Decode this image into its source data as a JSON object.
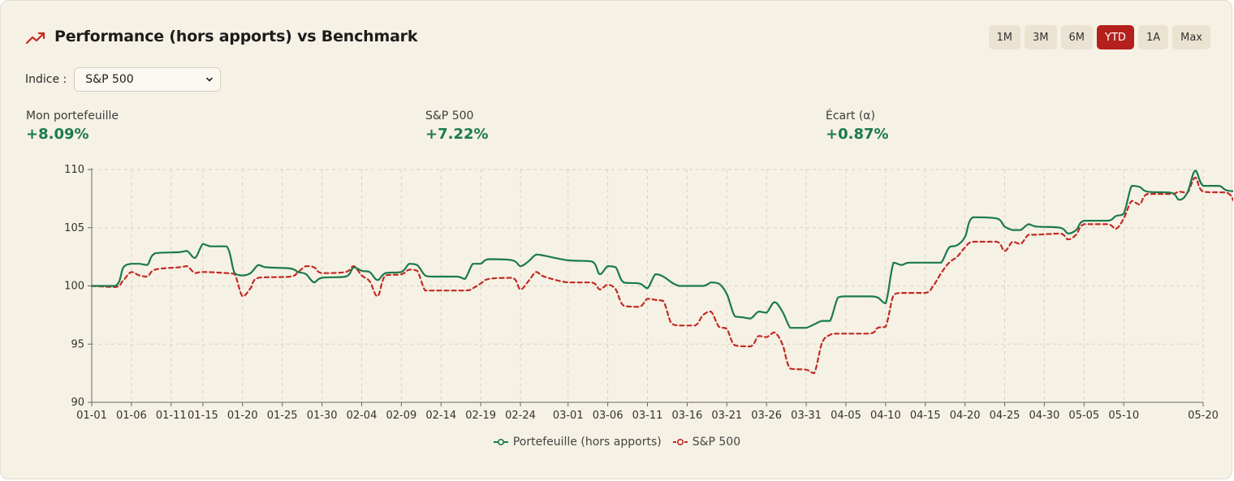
{
  "header": {
    "title": "Performance (hors apports) vs Benchmark",
    "ranges": [
      {
        "label": "1M",
        "active": false
      },
      {
        "label": "3M",
        "active": false
      },
      {
        "label": "6M",
        "active": false
      },
      {
        "label": "YTD",
        "active": true
      },
      {
        "label": "1A",
        "active": false
      },
      {
        "label": "Max",
        "active": false
      }
    ]
  },
  "index_selector": {
    "label": "Indice :",
    "selected": "S&P 500"
  },
  "stats": [
    {
      "label": "Mon portefeuille",
      "value": "+8.09%"
    },
    {
      "label": "S&P 500",
      "value": "+7.22%"
    },
    {
      "label": "Écart (α)",
      "value": "+0.87%"
    }
  ],
  "colors": {
    "portfolio": "#1a7a4c",
    "benchmark": "#c22a24",
    "active_range": "#b4211d",
    "background": "#f6f1e5"
  },
  "chart_data": {
    "type": "line",
    "ylim": [
      90,
      110
    ],
    "yticks": [
      90,
      95,
      100,
      105,
      110
    ],
    "xticks": [
      "01-01",
      "01-06",
      "01-11",
      "01-15",
      "01-20",
      "01-25",
      "01-30",
      "02-04",
      "02-09",
      "02-14",
      "02-19",
      "02-24",
      "03-01",
      "03-06",
      "03-11",
      "03-16",
      "03-21",
      "03-26",
      "03-31",
      "04-05",
      "04-10",
      "04-15",
      "04-20",
      "04-25",
      "04-30",
      "05-05",
      "05-10",
      "05-20"
    ],
    "grid": true,
    "legend": "bottom-center",
    "series": [
      {
        "name": "Portefeuille (hors apports)",
        "style": "solid",
        "points": [
          [
            "01-01",
            100
          ],
          [
            "01-04",
            100
          ],
          [
            "01-05",
            101.6
          ],
          [
            "01-06",
            101.9
          ],
          [
            "01-07",
            101.9
          ],
          [
            "01-08",
            101.8
          ],
          [
            "01-09",
            102.8
          ],
          [
            "01-12",
            102.9
          ],
          [
            "01-13",
            103.0
          ],
          [
            "01-14",
            102.4
          ],
          [
            "01-15",
            103.6
          ],
          [
            "01-16",
            103.4
          ],
          [
            "01-18",
            103.4
          ],
          [
            "01-19",
            101.1
          ],
          [
            "01-20",
            100.9
          ],
          [
            "01-21",
            101.1
          ],
          [
            "01-22",
            101.8
          ],
          [
            "01-23",
            101.6
          ],
          [
            "01-26",
            101.5
          ],
          [
            "01-27",
            101.2
          ],
          [
            "01-28",
            101.0
          ],
          [
            "01-29",
            100.3
          ],
          [
            "01-30",
            100.7
          ],
          [
            "02-02",
            100.8
          ],
          [
            "02-03",
            101.6
          ],
          [
            "02-04",
            101.3
          ],
          [
            "02-05",
            101.2
          ],
          [
            "02-06",
            100.5
          ],
          [
            "02-07",
            101.1
          ],
          [
            "02-09",
            101.2
          ],
          [
            "02-10",
            101.9
          ],
          [
            "02-11",
            101.8
          ],
          [
            "02-12",
            100.9
          ],
          [
            "02-13",
            100.8
          ],
          [
            "02-16",
            100.8
          ],
          [
            "02-17",
            100.6
          ],
          [
            "02-18",
            101.9
          ],
          [
            "02-19",
            101.9
          ],
          [
            "02-20",
            102.3
          ],
          [
            "02-23",
            102.2
          ],
          [
            "02-24",
            101.7
          ],
          [
            "02-25",
            102.1
          ],
          [
            "02-26",
            102.7
          ],
          [
            "02-27",
            102.6
          ],
          [
            "03-01",
            102.2
          ],
          [
            "03-04",
            102.1
          ],
          [
            "03-05",
            101.0
          ],
          [
            "03-06",
            101.7
          ],
          [
            "03-07",
            101.6
          ],
          [
            "03-08",
            100.3
          ],
          [
            "03-10",
            100.2
          ],
          [
            "03-11",
            99.8
          ],
          [
            "03-12",
            101.0
          ],
          [
            "03-13",
            100.8
          ],
          [
            "03-15",
            100.0
          ],
          [
            "03-18",
            100.0
          ],
          [
            "03-19",
            100.3
          ],
          [
            "03-20",
            100.2
          ],
          [
            "03-21",
            99.3
          ],
          [
            "03-22",
            97.4
          ],
          [
            "03-23",
            97.3
          ],
          [
            "03-24",
            97.2
          ],
          [
            "03-25",
            97.8
          ],
          [
            "03-26",
            97.7
          ],
          [
            "03-27",
            98.6
          ],
          [
            "03-28",
            97.8
          ],
          [
            "03-29",
            96.4
          ],
          [
            "03-30",
            96.4
          ],
          [
            "03-31",
            96.4
          ],
          [
            "04-01",
            96.7
          ],
          [
            "04-02",
            97.0
          ],
          [
            "04-03",
            97.0
          ],
          [
            "04-04",
            99.0
          ],
          [
            "04-05",
            99.1
          ],
          [
            "04-08",
            99.1
          ],
          [
            "04-09",
            99.0
          ],
          [
            "04-10",
            98.5
          ],
          [
            "04-11",
            102.0
          ],
          [
            "04-12",
            101.8
          ],
          [
            "04-13",
            102.0
          ],
          [
            "04-16",
            102.0
          ],
          [
            "04-17",
            102.0
          ],
          [
            "04-18",
            103.3
          ],
          [
            "04-19",
            103.5
          ],
          [
            "04-20",
            104.2
          ],
          [
            "04-21",
            105.9
          ],
          [
            "04-24",
            105.8
          ],
          [
            "04-25",
            105.1
          ],
          [
            "04-26",
            104.8
          ],
          [
            "04-27",
            104.8
          ],
          [
            "04-28",
            105.3
          ],
          [
            "04-29",
            105.1
          ],
          [
            "05-02",
            105.0
          ],
          [
            "05-03",
            104.5
          ],
          [
            "05-04",
            104.8
          ],
          [
            "05-05",
            105.6
          ],
          [
            "05-08",
            105.6
          ],
          [
            "05-09",
            106.0
          ],
          [
            "05-10",
            106.2
          ],
          [
            "05-11",
            108.6
          ],
          [
            "05-12",
            108.5
          ],
          [
            "05-13",
            108.1
          ],
          [
            "05-16",
            108.0
          ],
          [
            "05-17",
            107.4
          ],
          [
            "05-18",
            108.0
          ],
          [
            "05-19",
            109.9
          ],
          [
            "05-20",
            108.6
          ],
          [
            "05-22",
            108.6
          ],
          [
            "05-23",
            108.2
          ],
          [
            "05-25",
            108.1
          ]
        ]
      },
      {
        "name": "S&P 500",
        "style": "dashed",
        "points": [
          [
            "01-01",
            100
          ],
          [
            "01-04",
            99.9
          ],
          [
            "01-05",
            100.5
          ],
          [
            "01-06",
            101.2
          ],
          [
            "01-07",
            100.9
          ],
          [
            "01-08",
            100.8
          ],
          [
            "01-09",
            101.4
          ],
          [
            "01-12",
            101.6
          ],
          [
            "01-13",
            101.7
          ],
          [
            "01-14",
            101.1
          ],
          [
            "01-15",
            101.2
          ],
          [
            "01-18",
            101.1
          ],
          [
            "01-19",
            101.0
          ],
          [
            "01-20",
            99.1
          ],
          [
            "01-21",
            99.8
          ],
          [
            "01-22",
            100.7
          ],
          [
            "01-26",
            100.8
          ],
          [
            "01-27",
            101.2
          ],
          [
            "01-28",
            101.7
          ],
          [
            "01-29",
            101.6
          ],
          [
            "01-30",
            101.1
          ],
          [
            "02-02",
            101.2
          ],
          [
            "02-03",
            101.7
          ],
          [
            "02-04",
            100.9
          ],
          [
            "02-05",
            100.4
          ],
          [
            "02-06",
            99.1
          ],
          [
            "02-07",
            100.9
          ],
          [
            "02-09",
            101.0
          ],
          [
            "02-10",
            101.4
          ],
          [
            "02-11",
            101.3
          ],
          [
            "02-12",
            99.6
          ],
          [
            "02-13",
            99.6
          ],
          [
            "02-17",
            99.6
          ],
          [
            "02-18",
            99.8
          ],
          [
            "02-19",
            100.2
          ],
          [
            "02-20",
            100.6
          ],
          [
            "02-23",
            100.7
          ],
          [
            "02-24",
            99.7
          ],
          [
            "02-25",
            100.4
          ],
          [
            "02-26",
            101.2
          ],
          [
            "02-27",
            100.8
          ],
          [
            "03-01",
            100.3
          ],
          [
            "03-04",
            100.3
          ],
          [
            "03-05",
            99.7
          ],
          [
            "03-06",
            100.1
          ],
          [
            "03-07",
            99.7
          ],
          [
            "03-08",
            98.3
          ],
          [
            "03-10",
            98.2
          ],
          [
            "03-11",
            98.9
          ],
          [
            "03-12",
            98.8
          ],
          [
            "03-13",
            98.7
          ],
          [
            "03-14",
            96.8
          ],
          [
            "03-15",
            96.6
          ],
          [
            "03-17",
            96.6
          ],
          [
            "03-18",
            97.5
          ],
          [
            "03-19",
            97.8
          ],
          [
            "03-20",
            96.5
          ],
          [
            "03-21",
            96.3
          ],
          [
            "03-22",
            94.9
          ],
          [
            "03-24",
            94.8
          ],
          [
            "03-25",
            95.7
          ],
          [
            "03-26",
            95.6
          ],
          [
            "03-27",
            96.0
          ],
          [
            "03-28",
            95.0
          ],
          [
            "03-29",
            92.9
          ],
          [
            "03-31",
            92.8
          ],
          [
            "04-01",
            92.5
          ],
          [
            "04-02",
            95.1
          ],
          [
            "04-03",
            95.8
          ],
          [
            "04-04",
            95.9
          ],
          [
            "04-08",
            95.9
          ],
          [
            "04-09",
            96.4
          ],
          [
            "04-10",
            96.5
          ],
          [
            "04-11",
            99.2
          ],
          [
            "04-12",
            99.4
          ],
          [
            "04-15",
            99.4
          ],
          [
            "04-16",
            100.0
          ],
          [
            "04-17",
            101.1
          ],
          [
            "04-18",
            102.0
          ],
          [
            "04-19",
            102.5
          ],
          [
            "04-20",
            103.3
          ],
          [
            "04-21",
            103.8
          ],
          [
            "04-24",
            103.8
          ],
          [
            "04-25",
            103.0
          ],
          [
            "04-26",
            103.8
          ],
          [
            "04-27",
            103.6
          ],
          [
            "04-28",
            104.4
          ],
          [
            "04-29",
            104.4
          ],
          [
            "05-02",
            104.5
          ],
          [
            "05-03",
            104.0
          ],
          [
            "05-04",
            104.4
          ],
          [
            "05-05",
            105.3
          ],
          [
            "05-08",
            105.3
          ],
          [
            "05-09",
            104.9
          ],
          [
            "05-10",
            105.8
          ],
          [
            "05-11",
            107.3
          ],
          [
            "05-12",
            107.0
          ],
          [
            "05-13",
            107.9
          ],
          [
            "05-16",
            107.9
          ],
          [
            "05-17",
            108.1
          ],
          [
            "05-18",
            108.0
          ],
          [
            "05-19",
            109.3
          ],
          [
            "05-20",
            108.1
          ],
          [
            "05-23",
            108.0
          ],
          [
            "05-24",
            107.2
          ],
          [
            "05-25",
            107.2
          ]
        ]
      }
    ]
  }
}
